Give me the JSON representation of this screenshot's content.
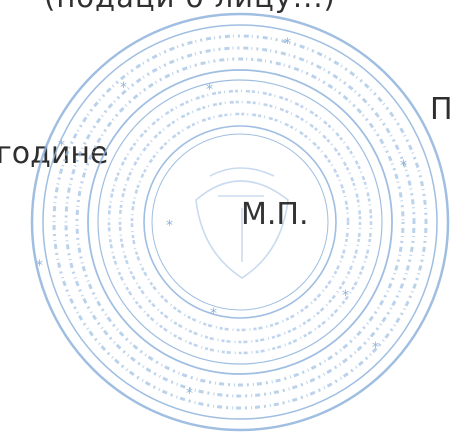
{
  "document": {
    "top_fragment": "(подаци о лицу...)",
    "year_line": "године",
    "mp_line": "М.П.",
    "right_fragment": "П"
  },
  "stamp": {
    "type": "round official seal",
    "color": "#8fb3dc"
  }
}
